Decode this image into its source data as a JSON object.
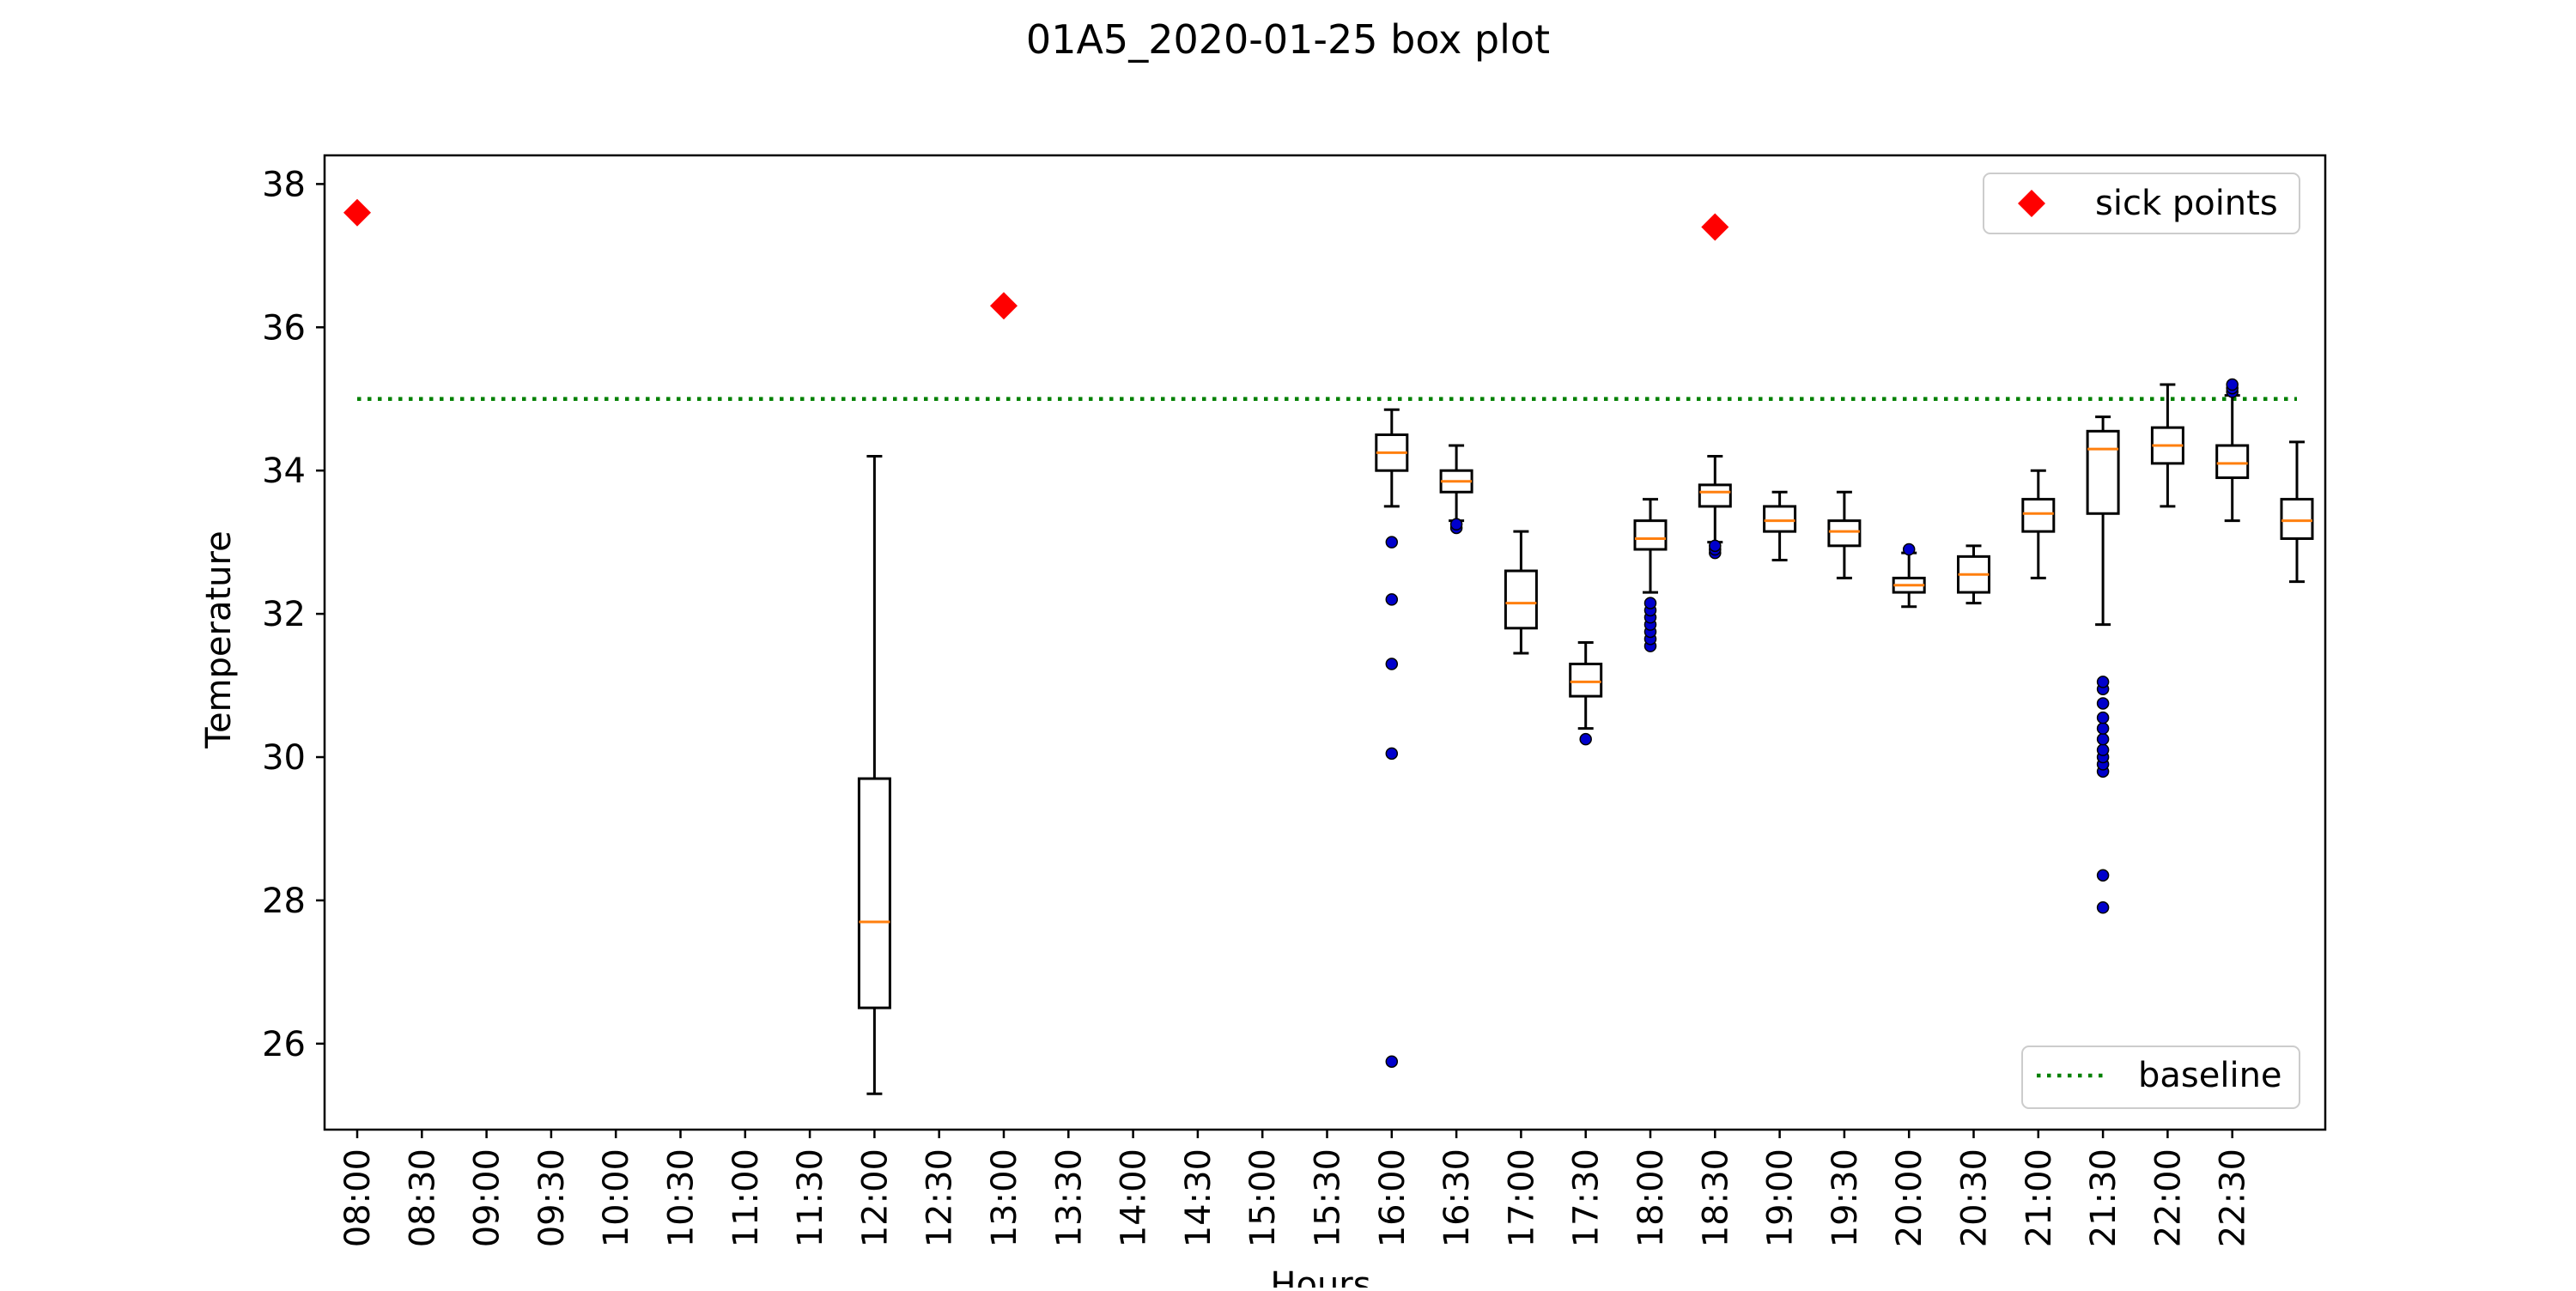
{
  "chart_data": {
    "type": "box",
    "title": "01A5_2020-01-25 box plot",
    "xlabel": "Hours",
    "ylabel": "Temperature",
    "ylim": [
      24.8,
      38.4
    ],
    "y_ticks": [
      26,
      28,
      30,
      32,
      34,
      36,
      38
    ],
    "x_ticks": [
      "08:00",
      "08:30",
      "09:00",
      "09:30",
      "10:00",
      "10:30",
      "11:00",
      "11:30",
      "12:00",
      "12:30",
      "13:00",
      "13:30",
      "14:00",
      "14:30",
      "15:00",
      "15:30",
      "16:00",
      "16:30",
      "17:00",
      "17:30",
      "18:00",
      "18:30",
      "19:00",
      "19:30",
      "20:00",
      "20:30",
      "21:00",
      "21:30",
      "22:00",
      "22:30"
    ],
    "grid": false,
    "baseline": {
      "name": "baseline",
      "value": 35.0,
      "color": "#008000",
      "style": "dotted",
      "legend_position": "lower-right"
    },
    "sick_points": {
      "name": "sick points",
      "color": "#ff0000",
      "marker": "diamond",
      "legend_position": "upper-right",
      "points": [
        {
          "x": "08:00",
          "y": 37.6
        },
        {
          "x": "13:00",
          "y": 36.3
        },
        {
          "x": "18:30",
          "y": 37.4
        }
      ]
    },
    "box_color": "#000000",
    "median_color": "#ff7f0e",
    "flier_color": "#0000cc",
    "boxes": [
      {
        "x": "12:00",
        "whisker_low": 25.3,
        "q1": 26.5,
        "median": 27.7,
        "q3": 29.7,
        "whisker_high": 34.2,
        "outliers": []
      },
      {
        "x": "16:00",
        "whisker_low": 33.5,
        "q1": 34.0,
        "median": 34.25,
        "q3": 34.5,
        "whisker_high": 34.85,
        "outliers": [
          25.75,
          30.05,
          31.3,
          32.2,
          33.0
        ]
      },
      {
        "x": "16:30",
        "whisker_low": 33.3,
        "q1": 33.7,
        "median": 33.85,
        "q3": 34.0,
        "whisker_high": 34.35,
        "outliers": [
          33.2,
          33.25
        ]
      },
      {
        "x": "17:00",
        "whisker_low": 31.45,
        "q1": 31.8,
        "median": 32.15,
        "q3": 32.6,
        "whisker_high": 33.15,
        "outliers": []
      },
      {
        "x": "17:30",
        "whisker_low": 30.4,
        "q1": 30.85,
        "median": 31.05,
        "q3": 31.3,
        "whisker_high": 31.6,
        "outliers": [
          30.25
        ]
      },
      {
        "x": "18:00",
        "whisker_low": 32.3,
        "q1": 32.9,
        "median": 33.05,
        "q3": 33.3,
        "whisker_high": 33.6,
        "outliers": [
          31.55,
          31.65,
          31.75,
          31.85,
          31.95,
          32.05,
          32.15
        ]
      },
      {
        "x": "18:30",
        "whisker_low": 33.0,
        "q1": 33.5,
        "median": 33.7,
        "q3": 33.8,
        "whisker_high": 34.2,
        "outliers": [
          32.85,
          32.9,
          32.95
        ]
      },
      {
        "x": "19:00",
        "whisker_low": 32.75,
        "q1": 33.15,
        "median": 33.3,
        "q3": 33.5,
        "whisker_high": 33.7,
        "outliers": []
      },
      {
        "x": "19:30",
        "whisker_low": 32.5,
        "q1": 32.95,
        "median": 33.15,
        "q3": 33.3,
        "whisker_high": 33.7,
        "outliers": []
      },
      {
        "x": "20:00",
        "whisker_low": 32.1,
        "q1": 32.3,
        "median": 32.4,
        "q3": 32.5,
        "whisker_high": 32.85,
        "outliers": [
          32.9
        ]
      },
      {
        "x": "20:30",
        "whisker_low": 32.15,
        "q1": 32.3,
        "median": 32.55,
        "q3": 32.8,
        "whisker_high": 32.95,
        "outliers": []
      },
      {
        "x": "21:00",
        "whisker_low": 32.5,
        "q1": 33.15,
        "median": 33.4,
        "q3": 33.6,
        "whisker_high": 34.0,
        "outliers": []
      },
      {
        "x": "21:30",
        "whisker_low": 31.85,
        "q1": 33.4,
        "median": 34.3,
        "q3": 34.55,
        "whisker_high": 34.75,
        "outliers": [
          27.9,
          28.35,
          29.8,
          29.9,
          30.0,
          30.1,
          30.25,
          30.4,
          30.55,
          30.75,
          30.95,
          31.05
        ]
      },
      {
        "x": "22:00",
        "whisker_low": 33.5,
        "q1": 34.1,
        "median": 34.35,
        "q3": 34.6,
        "whisker_high": 35.2,
        "outliers": []
      },
      {
        "x": "22:30",
        "whisker_low": 33.3,
        "q1": 33.9,
        "median": 34.1,
        "q3": 34.35,
        "whisker_high": 35.05,
        "outliers": [
          35.1,
          35.15,
          35.2
        ]
      },
      {
        "slot": 30,
        "whisker_low": 32.45,
        "q1": 33.05,
        "median": 33.3,
        "q3": 33.6,
        "whisker_high": 34.4,
        "outliers": []
      }
    ]
  }
}
